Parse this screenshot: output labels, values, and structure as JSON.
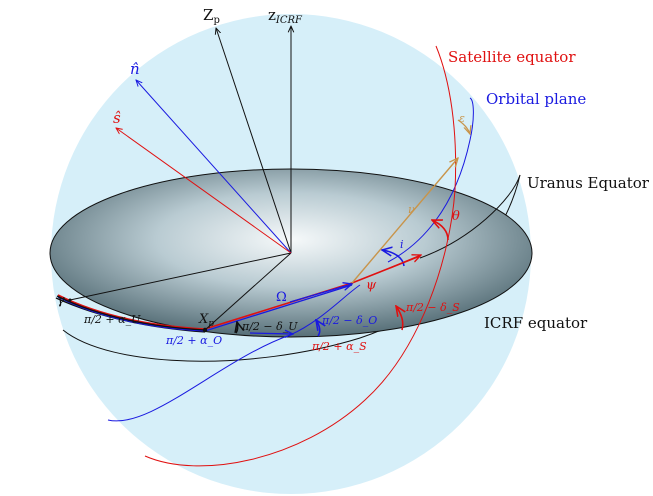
{
  "colors": {
    "sphere": "#d6eff9",
    "satellite": "#e01010",
    "orbital": "#1a1ae0",
    "axis_black": "#111111",
    "brown": "#c8944a",
    "grey_disc_dark": "#3e5660",
    "grey_disc_light": "#f4f7f8"
  },
  "axes": {
    "z_p": "Z_p",
    "z_icrf": "z_ICRF",
    "n_hat": "n̂",
    "s_hat": "ŝ"
  },
  "labels": {
    "satellite_equator": "Satellite equator",
    "orbital_plane": "Orbital plane",
    "uranus_equator": "Uranus Equator",
    "icrf_equator": "ICRF equator",
    "gamma": "γ",
    "x_p": "X_p",
    "omega": "Ω",
    "psi": "ψ",
    "nu": "ν",
    "i": "i",
    "theta": "θ",
    "epsilon": "ε",
    "pi2_plus_alpha_u": "π/2 + α_U",
    "pi2_plus_alpha_o": "π/2 + α_O",
    "pi2_minus_delta_u": "π/2 − δ_U",
    "pi2_minus_delta_o": "π/2 − δ_O",
    "pi2_minus_delta_s": "π/2 − δ_S",
    "pi2_plus_alpha_s": "π/2 + α_S"
  }
}
